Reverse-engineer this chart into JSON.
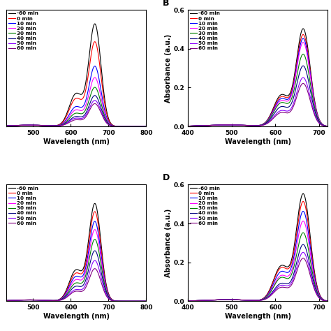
{
  "time_labels": [
    "-60 min",
    "0 min",
    "10 min",
    "20 min",
    "30 min",
    "40 min",
    "50 min",
    "60 min"
  ],
  "colors": [
    "#000000",
    "#ff0000",
    "#0000ff",
    "#ff00ff",
    "#008000",
    "#000080",
    "#8b00ff",
    "#800080"
  ],
  "xlabel": "Wavelength (nm)",
  "ylabel": "Absorbance (a.u.)",
  "background_color": "#ffffff",
  "peak_wavelength": 664,
  "shoulder_wavelength": 614,
  "peak_sigma": 16,
  "shoulder_sigma": 18,
  "panels": [
    {
      "label": "",
      "xlim": [
        430,
        800
      ],
      "xticks": [
        500,
        600,
        700,
        800
      ],
      "ylim": [
        0,
        0.72
      ],
      "yticks": [],
      "has_ylabel": false,
      "has_xlabel": true,
      "legend_loc": "upper left",
      "peak_heights": [
        0.63,
        0.52,
        0.37,
        0.3,
        0.24,
        0.19,
        0.16,
        0.14
      ],
      "shoulder_heights": [
        0.2,
        0.17,
        0.12,
        0.1,
        0.08,
        0.06,
        0.05,
        0.04
      ],
      "row": 0,
      "col": 0
    },
    {
      "label": "B",
      "xlim": [
        400,
        720
      ],
      "xticks": [
        400,
        500,
        600,
        700
      ],
      "ylim": [
        0,
        0.6
      ],
      "yticks": [
        0.0,
        0.2,
        0.4,
        0.6
      ],
      "has_ylabel": true,
      "has_xlabel": true,
      "legend_loc": "upper left",
      "peak_heights": [
        0.5,
        0.47,
        0.45,
        0.43,
        0.37,
        0.31,
        0.25,
        0.22
      ],
      "shoulder_heights": [
        0.16,
        0.15,
        0.14,
        0.13,
        0.12,
        0.1,
        0.08,
        0.07
      ],
      "row": 0,
      "col": 1
    },
    {
      "label": "",
      "xlim": [
        430,
        800
      ],
      "xticks": [
        500,
        600,
        700,
        800
      ],
      "ylim": [
        0,
        0.72
      ],
      "yticks": [],
      "has_ylabel": false,
      "has_xlabel": true,
      "legend_loc": "upper left",
      "peak_heights": [
        0.6,
        0.55,
        0.49,
        0.44,
        0.38,
        0.31,
        0.25,
        0.2
      ],
      "shoulder_heights": [
        0.19,
        0.17,
        0.15,
        0.13,
        0.11,
        0.09,
        0.07,
        0.06
      ],
      "row": 1,
      "col": 0
    },
    {
      "label": "D",
      "xlim": [
        400,
        720
      ],
      "xticks": [
        400,
        500,
        600,
        700
      ],
      "ylim": [
        0,
        0.6
      ],
      "yticks": [
        0.0,
        0.2,
        0.4,
        0.6
      ],
      "has_ylabel": true,
      "has_xlabel": true,
      "legend_loc": "upper left",
      "peak_heights": [
        0.55,
        0.51,
        0.46,
        0.41,
        0.35,
        0.29,
        0.25,
        0.22
      ],
      "shoulder_heights": [
        0.18,
        0.17,
        0.15,
        0.13,
        0.12,
        0.09,
        0.08,
        0.07
      ],
      "row": 1,
      "col": 1
    }
  ]
}
